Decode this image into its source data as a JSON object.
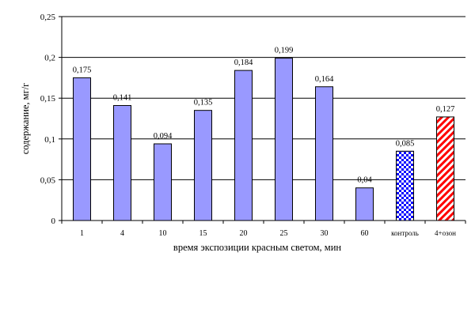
{
  "chart_data": {
    "type": "bar",
    "title": "",
    "xlabel": "время экспозиции красным светом, мин",
    "ylabel": "содержание, мг/г",
    "ylim": [
      0,
      0.25
    ],
    "yticks": [
      0,
      0.05,
      0.1,
      0.15,
      0.2,
      0.25
    ],
    "ytick_labels": [
      "0",
      "0,05",
      "0,1",
      "0,15",
      "0,2",
      "0,25"
    ],
    "grid": "horizontal",
    "categories": [
      "1",
      "4",
      "10",
      "15",
      "20",
      "25",
      "30",
      "60",
      "контроль",
      "4+озон"
    ],
    "values": [
      0.175,
      0.141,
      0.094,
      0.135,
      0.184,
      0.199,
      0.164,
      0.04,
      0.085,
      0.127
    ],
    "value_labels": [
      "0,175",
      "0,141",
      "0,094",
      "0,135",
      "0,184",
      "0,199",
      "0,164",
      "0,04",
      "0,085",
      "0,127"
    ],
    "bar_styles": [
      "solid",
      "solid",
      "solid",
      "solid",
      "solid",
      "solid",
      "solid",
      "solid",
      "checker",
      "diagonal"
    ],
    "colors": {
      "bar_fill": "#9999ff",
      "bar_outline": "#000000",
      "checker_a": "#0000ff",
      "checker_b": "#ffffff",
      "diagonal_a": "#ff0000",
      "diagonal_b": "#ffffff",
      "grid": "#000000"
    }
  }
}
